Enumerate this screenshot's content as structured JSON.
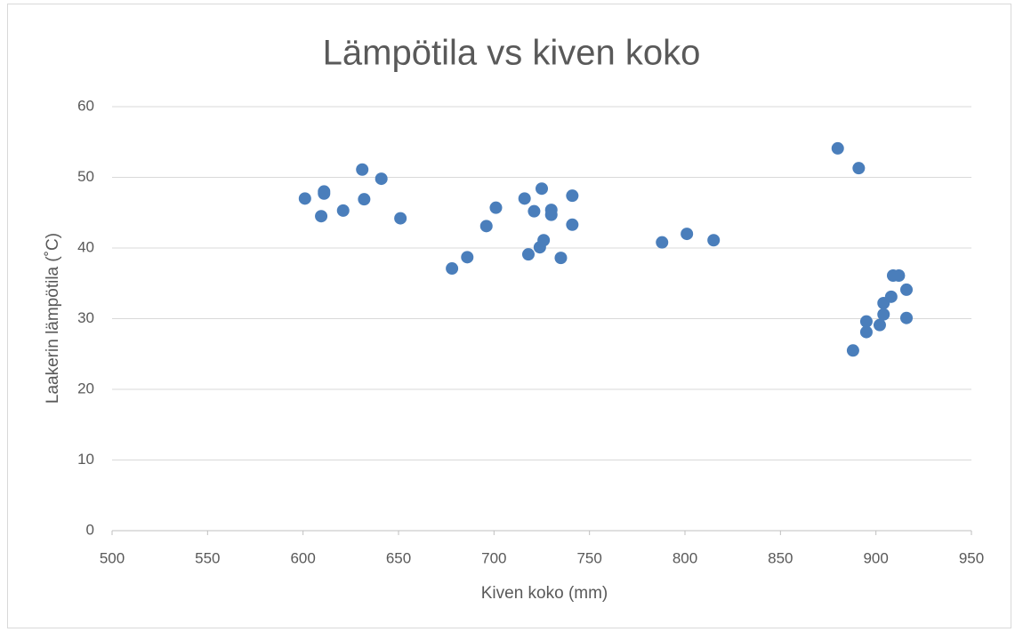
{
  "chart_data": {
    "type": "scatter",
    "title": "Lämpötila vs kiven koko",
    "x_label": "Kiven koko (mm)",
    "y_label": "Laakerin lämpötila (˚C)",
    "color": "#4a7ebb",
    "grid": true,
    "xlim": [
      500,
      950
    ],
    "xticks": [
      500,
      550,
      600,
      650,
      700,
      750,
      800,
      850,
      900,
      950
    ],
    "ylim": [
      0,
      60
    ],
    "yticks": [
      0,
      10,
      20,
      30,
      40,
      50,
      60
    ],
    "x": [
      601,
      609.5,
      611,
      611,
      621,
      631,
      632,
      641,
      651,
      678,
      686,
      696,
      701,
      716,
      718,
      721,
      725,
      724,
      726,
      730,
      730,
      735,
      741,
      741,
      788,
      801,
      815,
      880,
      891,
      888,
      895,
      895,
      902,
      904,
      904,
      908,
      909,
      912,
      916,
      916
    ],
    "values": [
      47.0,
      44.5,
      48.0,
      47.7,
      45.3,
      51.1,
      46.9,
      49.8,
      44.2,
      37.1,
      38.7,
      43.1,
      45.7,
      47.0,
      39.1,
      45.2,
      48.4,
      40.1,
      41.1,
      45.4,
      44.7,
      38.6,
      47.4,
      43.3,
      40.8,
      42.0,
      41.1,
      54.1,
      51.3,
      25.5,
      29.6,
      28.1,
      29.1,
      32.2,
      30.6,
      33.1,
      36.1,
      36.1,
      34.1,
      30.1
    ]
  }
}
